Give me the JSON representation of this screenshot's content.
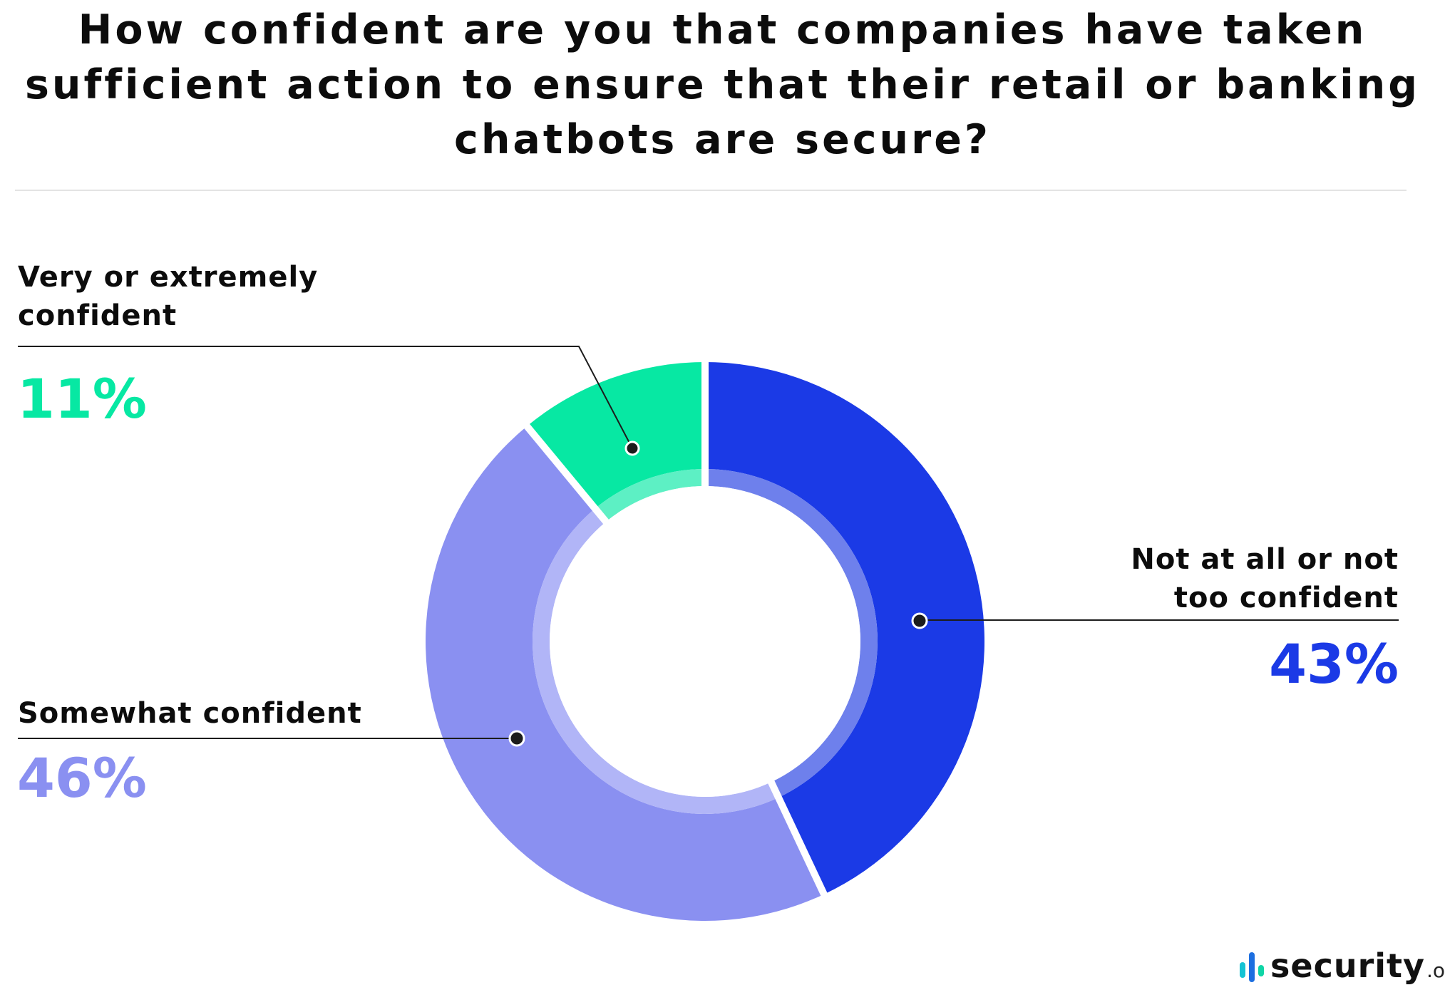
{
  "title": "How confident are you that companies have taken sufficient action to ensure that their retail or banking chatbots are secure?",
  "chart_data": {
    "type": "pie",
    "title": "How confident are you that companies have taken sufficient action to ensure that their retail or banking chatbots are secure?",
    "categories": [
      "Not at all or not too confident",
      "Somewhat confident",
      "Very or extremely confident"
    ],
    "values": [
      43,
      46,
      11
    ],
    "labels": [
      "43%",
      "46%",
      "11%"
    ],
    "colors": [
      "#1b3ae6",
      "#8a90f1",
      "#07e8a3"
    ],
    "inner_ring_colors": [
      "#6e80ec",
      "#b1b5f7",
      "#5df0c4"
    ]
  },
  "callouts": {
    "very": {
      "label": "Very or extremely confident",
      "value": "11%"
    },
    "somewhat": {
      "label": "Somewhat confident",
      "value": "46%"
    },
    "not": {
      "label": "Not at all or not too confident",
      "value": "43%"
    }
  },
  "brand": {
    "name": "security",
    "tld": ".org",
    "icon": "bar-chart-icon"
  }
}
